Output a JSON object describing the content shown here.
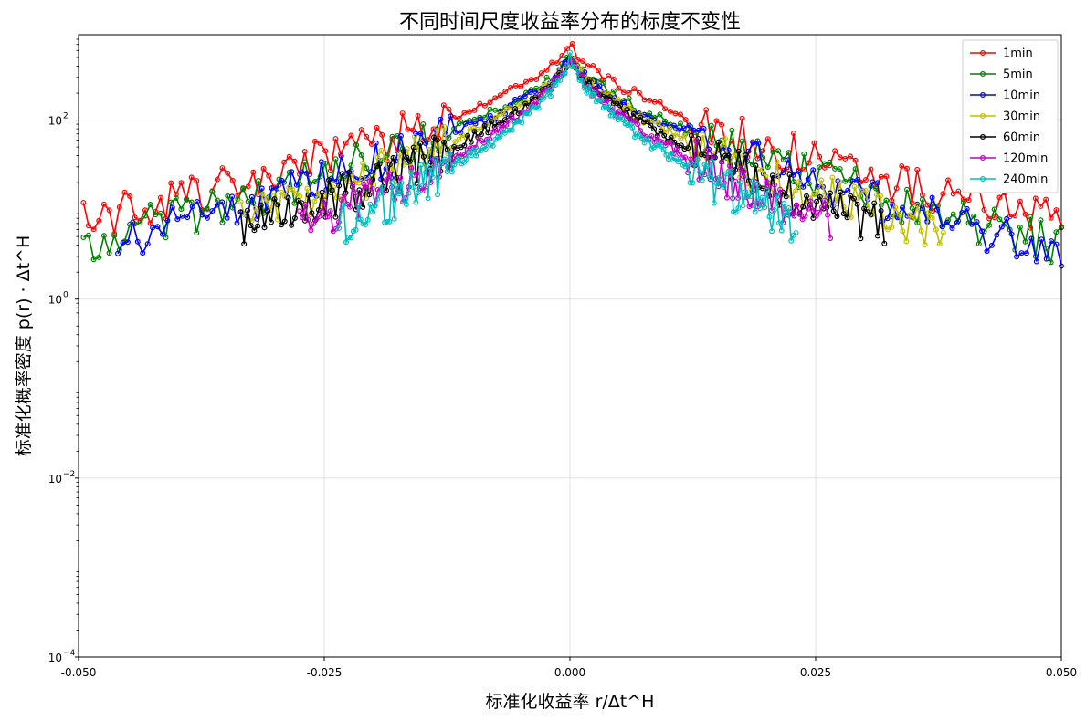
{
  "chart_data": {
    "type": "line",
    "title": "不同时间尺度收益率分布的标度不变性",
    "xlabel": "标准化收益率 r/Δt^H",
    "ylabel": "标准化概率密度 p(r) · Δt^H",
    "xlim": [
      -0.05,
      0.05
    ],
    "ylim": [
      0.0001,
      900
    ],
    "yscale": "log",
    "grid": true,
    "legend_position": "top-right",
    "x_ticks": [
      -0.05,
      -0.025,
      0.0,
      0.025,
      0.05
    ],
    "x_tick_labels": [
      "-0.050",
      "-0.025",
      "0.000",
      "0.025",
      "0.050"
    ],
    "y_ticks": [
      0.0001,
      0.01,
      1,
      100
    ],
    "y_tick_labels": [
      "10",
      "10",
      "10",
      "10"
    ],
    "y_tick_exponents": [
      "−4",
      "−2",
      "0",
      "2"
    ],
    "series": [
      {
        "name": "1min",
        "color": "#ff0000",
        "width": 0.0185,
        "floor": 0.0027,
        "x_min": -0.0495,
        "x_max": 0.05,
        "peak": 750,
        "alpha": 0.5
      },
      {
        "name": "5min",
        "color": "#008000",
        "width": 0.029,
        "floor": 0.006,
        "x_min": -0.0495,
        "x_max": 0.05,
        "peak": 580,
        "alpha": 0.7
      },
      {
        "name": "10min",
        "color": "#0000ff",
        "width": 0.0345,
        "floor": 0.0082,
        "x_min": -0.046,
        "x_max": 0.05,
        "peak": 560,
        "alpha": 0.8
      },
      {
        "name": "30min",
        "color": "#bfbf00",
        "width": 0.0365,
        "floor": 0.012,
        "x_min": -0.0335,
        "x_max": 0.038,
        "peak": 560,
        "alpha": 0.9
      },
      {
        "name": "60min",
        "color": "#000000",
        "width": 0.039,
        "floor": 0.015,
        "x_min": -0.0335,
        "x_max": 0.032,
        "peak": 560,
        "alpha": 1.0
      },
      {
        "name": "120min",
        "color": "#bf00bf",
        "width": 0.042,
        "floor": 0.03,
        "x_min": -0.0275,
        "x_max": 0.0265,
        "peak": 550,
        "alpha": 1.15
      },
      {
        "name": "240min",
        "color": "#00bfbf",
        "width": 0.0445,
        "floor": 0.1,
        "x_min": -0.0235,
        "x_max": 0.023,
        "peak": 540,
        "alpha": 1.3
      }
    ]
  }
}
